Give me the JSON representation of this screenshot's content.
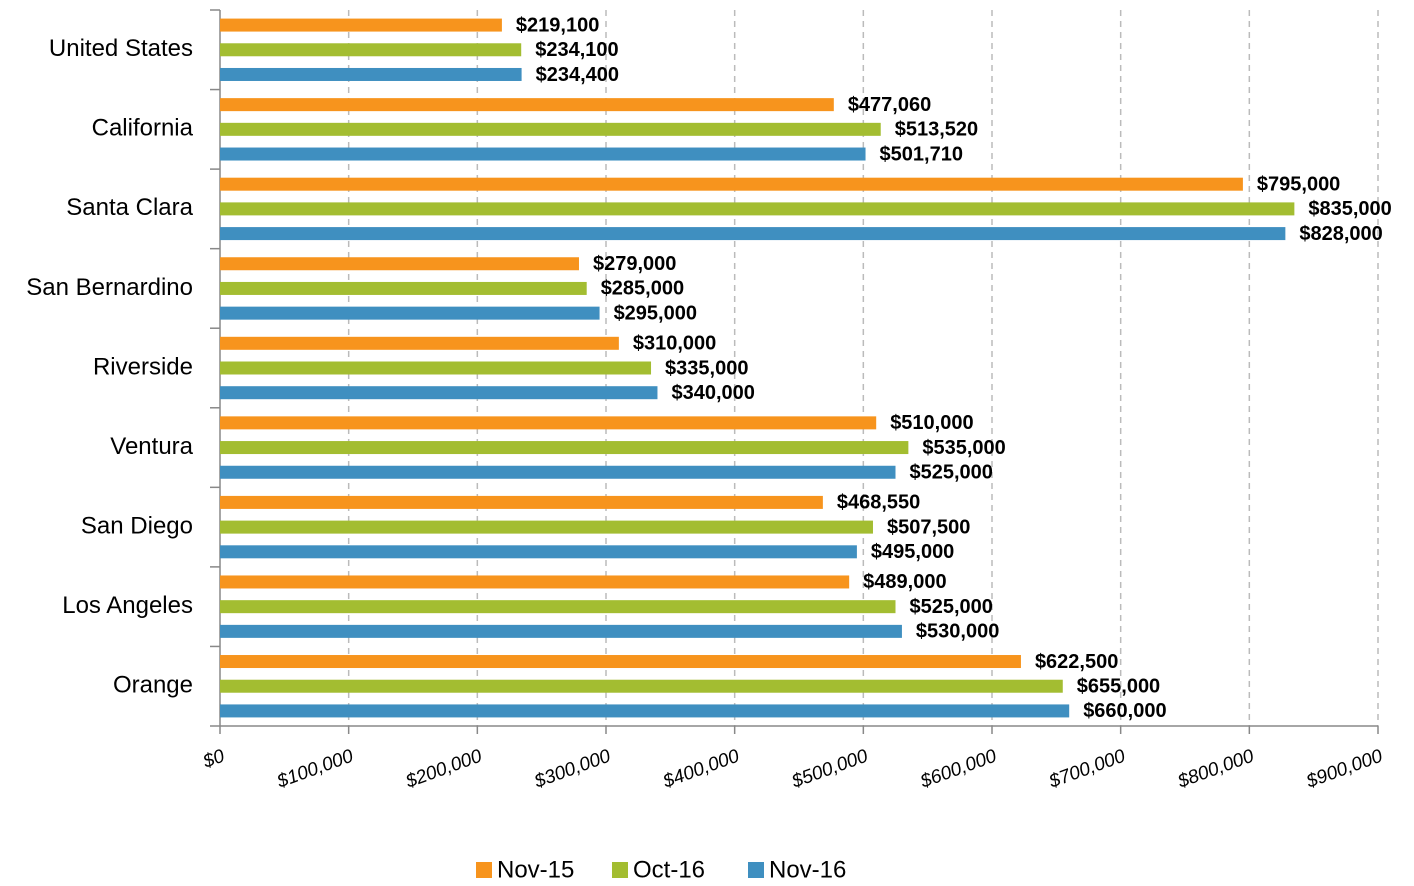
{
  "chart_data": {
    "type": "hbar",
    "categories": [
      "United States",
      "California",
      "Santa Clara",
      "San Bernardino",
      "Riverside",
      "Ventura",
      "San Diego",
      "Los Angeles",
      "Orange"
    ],
    "series": [
      {
        "name": "Nov-15",
        "color": "#f7941d",
        "values": [
          219100,
          477060,
          795000,
          279000,
          310000,
          510000,
          468550,
          489000,
          622500
        ],
        "value_labels": [
          "$219,100",
          "$477,060",
          "$795,000",
          "$279,000",
          "$310,000",
          "$510,000",
          "$468,550",
          "$489,000",
          "$622,500"
        ]
      },
      {
        "name": "Oct-16",
        "color": "#a3bd31",
        "values": [
          234100,
          513520,
          835000,
          285000,
          335000,
          535000,
          507500,
          525000,
          655000
        ],
        "value_labels": [
          "$234,100",
          "$513,520",
          "$835,000",
          "$285,000",
          "$335,000",
          "$535,000",
          "$507,500",
          "$525,000",
          "$655,000"
        ]
      },
      {
        "name": "Nov-16",
        "color": "#3f8fc0",
        "values": [
          234400,
          501710,
          828000,
          295000,
          340000,
          525000,
          495000,
          530000,
          660000
        ],
        "value_labels": [
          "$234,400",
          "$501,710",
          "$828,000",
          "$295,000",
          "$340,000",
          "$525,000",
          "$495,000",
          "$530,000",
          "$660,000"
        ]
      }
    ],
    "xlim": [
      0,
      900000
    ],
    "xticks": [
      {
        "value": 0,
        "label": "$0"
      },
      {
        "value": 100000,
        "label": "$100,000"
      },
      {
        "value": 200000,
        "label": "$200,000"
      },
      {
        "value": 300000,
        "label": "$300,000"
      },
      {
        "value": 400000,
        "label": "$400,000"
      },
      {
        "value": 500000,
        "label": "$500,000"
      },
      {
        "value": 600000,
        "label": "$600,000"
      },
      {
        "value": 700000,
        "label": "$700,000"
      },
      {
        "value": 800000,
        "label": "$800,000"
      },
      {
        "value": 900000,
        "label": "$900,000"
      }
    ],
    "grid": true,
    "legend": "bottom"
  }
}
